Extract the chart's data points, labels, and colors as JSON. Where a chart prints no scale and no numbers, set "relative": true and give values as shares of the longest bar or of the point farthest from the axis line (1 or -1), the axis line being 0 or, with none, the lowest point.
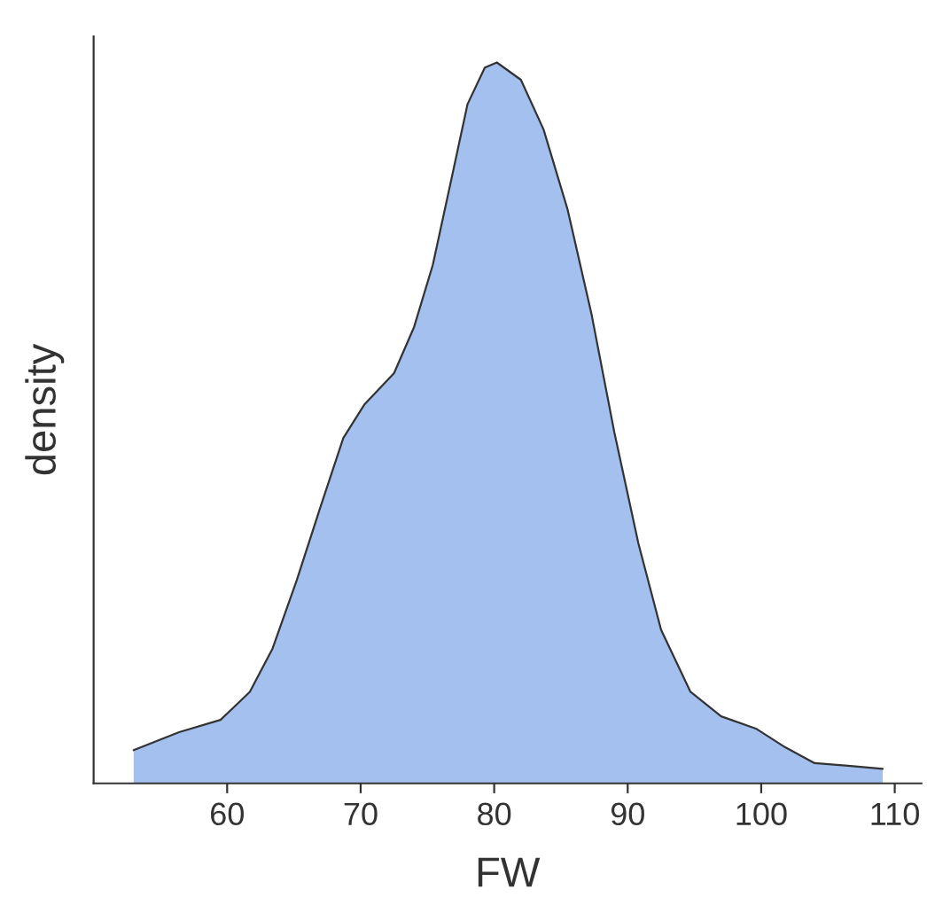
{
  "chart_data": {
    "type": "area",
    "relative": true,
    "xlabel": "FW",
    "ylabel": "density",
    "xlim": [
      50,
      112
    ],
    "xticks": [
      60,
      70,
      80,
      90,
      100,
      110
    ],
    "grid": false,
    "legend": false,
    "tick_labels": "x",
    "x": [
      53.0,
      56.4,
      59.5,
      61.7,
      63.4,
      65.2,
      67.0,
      68.7,
      70.3,
      72.5,
      74.0,
      75.4,
      76.7,
      78.0,
      79.3,
      80.2,
      82.0,
      83.7,
      85.5,
      87.3,
      89.0,
      90.8,
      92.5,
      94.7,
      97.0,
      99.6,
      101.8,
      104.0,
      106.7,
      109.1
    ],
    "series": [
      {
        "color": "#a3c0ef",
        "values": [
          0.046,
          0.071,
          0.088,
          0.127,
          0.187,
          0.281,
          0.384,
          0.479,
          0.526,
          0.569,
          0.633,
          0.719,
          0.83,
          0.942,
          0.993,
          1.0,
          0.976,
          0.907,
          0.796,
          0.65,
          0.487,
          0.333,
          0.213,
          0.127,
          0.093,
          0.076,
          0.05,
          0.028,
          0.024,
          0.02
        ]
      }
    ]
  }
}
